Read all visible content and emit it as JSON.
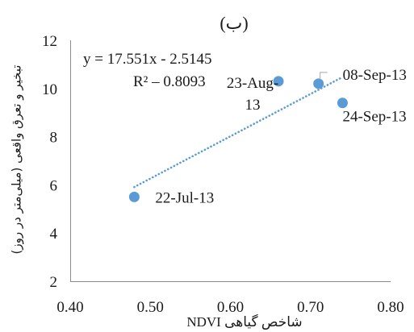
{
  "chart_data": {
    "type": "scatter",
    "title": "(ب)",
    "xlabel": "شاخص گیاهی NDVI",
    "ylabel": "تبخیر و تعرق واقعی (میلی‌متر در روز)",
    "xlim": [
      0.4,
      0.8
    ],
    "ylim": [
      2,
      12
    ],
    "x_ticks": [
      "0.40",
      "0.50",
      "0.60",
      "0.70",
      "0.80"
    ],
    "y_ticks": [
      "2",
      "4",
      "6",
      "8",
      "10",
      "12"
    ],
    "grid": false,
    "points": [
      {
        "x": 0.48,
        "y": 5.5,
        "label": "22-Jul-13"
      },
      {
        "x": 0.66,
        "y": 10.3,
        "label": "23-Aug-13"
      },
      {
        "x": 0.71,
        "y": 10.2,
        "label": "08-Sep-13"
      },
      {
        "x": 0.74,
        "y": 9.4,
        "label": "24-Sep-13"
      }
    ],
    "trendline": {
      "type": "linear",
      "style": "dotted",
      "slope": 17.551,
      "intercept": -2.5145,
      "equation": "y = 17.551x - 2.5145",
      "r2_label": "R² – 0.8093"
    },
    "colors": {
      "marker": "#5B9BD5",
      "trendline": "#5B9BD5",
      "axis": "#8C8C8C",
      "leader": "#A6A6A6"
    }
  }
}
